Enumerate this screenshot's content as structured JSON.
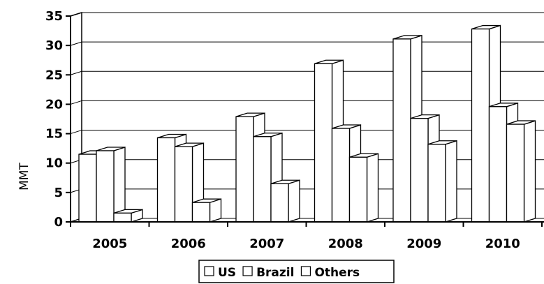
{
  "chart_data": {
    "type": "bar",
    "title": "",
    "xlabel": "",
    "ylabel": "MMT",
    "categories": [
      "2005",
      "2006",
      "2007",
      "2008",
      "2009",
      "2010"
    ],
    "series": [
      {
        "name": "US",
        "values": [
          11.5,
          14.3,
          17.9,
          26.9,
          31.1,
          32.8
        ]
      },
      {
        "name": "Brazil",
        "values": [
          12.1,
          12.8,
          14.5,
          15.9,
          17.6,
          19.6
        ]
      },
      {
        "name": "Others",
        "values": [
          1.5,
          3.3,
          6.5,
          11.0,
          13.2,
          16.6
        ]
      }
    ],
    "ylim": [
      0,
      35
    ],
    "yticks": [
      "0",
      "5",
      "10",
      "15",
      "20",
      "25",
      "30",
      "35"
    ],
    "grid": true,
    "legend_position": "bottom",
    "bar_color": "#ffffff",
    "edge_color": "#000000"
  }
}
